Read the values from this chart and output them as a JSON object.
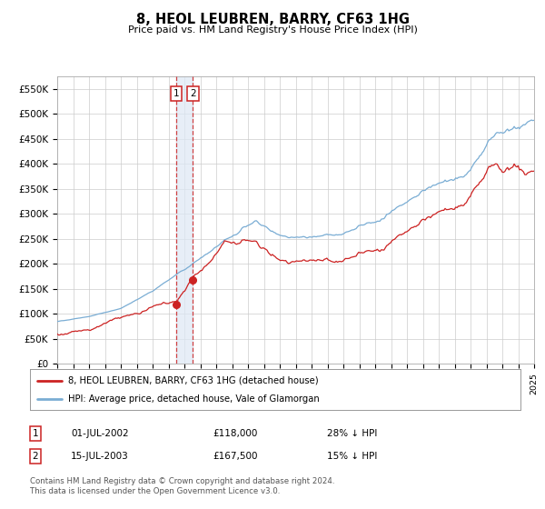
{
  "title": "8, HEOL LEUBREN, BARRY, CF63 1HG",
  "subtitle": "Price paid vs. HM Land Registry's House Price Index (HPI)",
  "ylim": [
    0,
    575000
  ],
  "yticks": [
    0,
    50000,
    100000,
    150000,
    200000,
    250000,
    300000,
    350000,
    400000,
    450000,
    500000,
    550000
  ],
  "ytick_labels": [
    "£0",
    "£50K",
    "£100K",
    "£150K",
    "£200K",
    "£250K",
    "£300K",
    "£350K",
    "£400K",
    "£450K",
    "£500K",
    "£550K"
  ],
  "hpi_color": "#7aadd4",
  "price_color": "#cc2222",
  "point1_date_num": 2002.5,
  "point1_value": 118000,
  "point2_date_num": 2003.54,
  "point2_value": 167500,
  "legend_price_label": "8, HEOL LEUBREN, BARRY, CF63 1HG (detached house)",
  "legend_hpi_label": "HPI: Average price, detached house, Vale of Glamorgan",
  "table_row1": [
    "1",
    "01-JUL-2002",
    "£118,000",
    "28% ↓ HPI"
  ],
  "table_row2": [
    "2",
    "15-JUL-2003",
    "£167,500",
    "15% ↓ HPI"
  ],
  "footnote1": "Contains HM Land Registry data © Crown copyright and database right 2024.",
  "footnote2": "This data is licensed under the Open Government Licence v3.0.",
  "background_color": "#ffffff",
  "grid_color": "#cccccc",
  "shaded_region_color": "#ddeeff"
}
